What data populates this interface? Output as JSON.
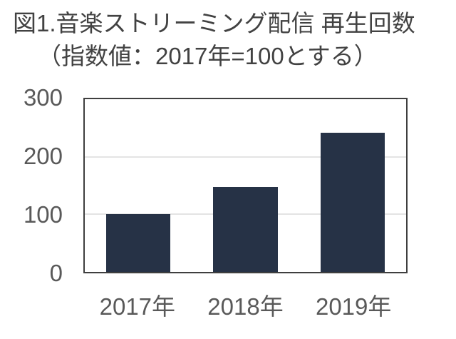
{
  "page": {
    "background": "#ffffff"
  },
  "chart_data": {
    "type": "bar",
    "title": "図1.音楽ストリーミング配信 再生回数",
    "subtitle": "（指数値：2017年=100とする）",
    "categories": [
      "2017年",
      "2018年",
      "2019年"
    ],
    "values": [
      100,
      148,
      242
    ],
    "xlabel": "",
    "ylabel": "",
    "ylim": [
      0,
      300
    ],
    "yticks": [
      0,
      100,
      200,
      300
    ],
    "grid": "horizontal",
    "legend": "none",
    "colors": {
      "bar": "#263246",
      "axis_border": "#3f3f3f",
      "gridline": "#e4e4e4",
      "tick_label": "#595959",
      "title_text": "#424242"
    }
  }
}
